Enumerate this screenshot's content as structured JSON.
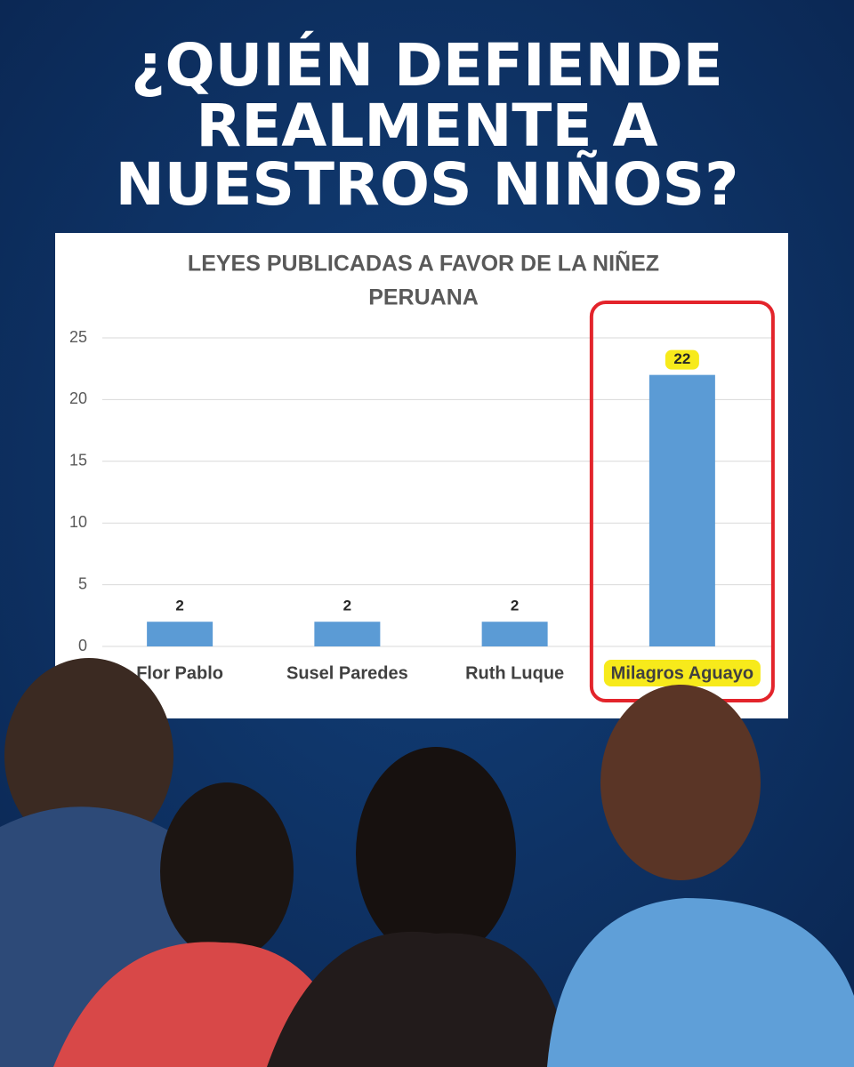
{
  "headline": [
    "¿QUIÉN DEFIENDE",
    "REALMENTE A",
    "NUESTROS NIÑOS?"
  ],
  "chart_data": {
    "type": "bar",
    "title": [
      "LEYES PUBLICADAS A FAVOR DE LA NIÑEZ",
      "PERUANA"
    ],
    "categories": [
      "Flor Pablo",
      "Susel Paredes",
      "Ruth Luque",
      "Milagros Aguayo"
    ],
    "values": [
      2,
      2,
      2,
      22
    ],
    "color": "#5b9bd5",
    "ylim": [
      0,
      25
    ],
    "yticks": [
      0,
      5,
      10,
      15,
      20,
      25
    ],
    "grid": true,
    "highlight": {
      "category": "Milagros Aguayo",
      "color": "#e3242b",
      "label_background": "#f7ea1b"
    }
  }
}
